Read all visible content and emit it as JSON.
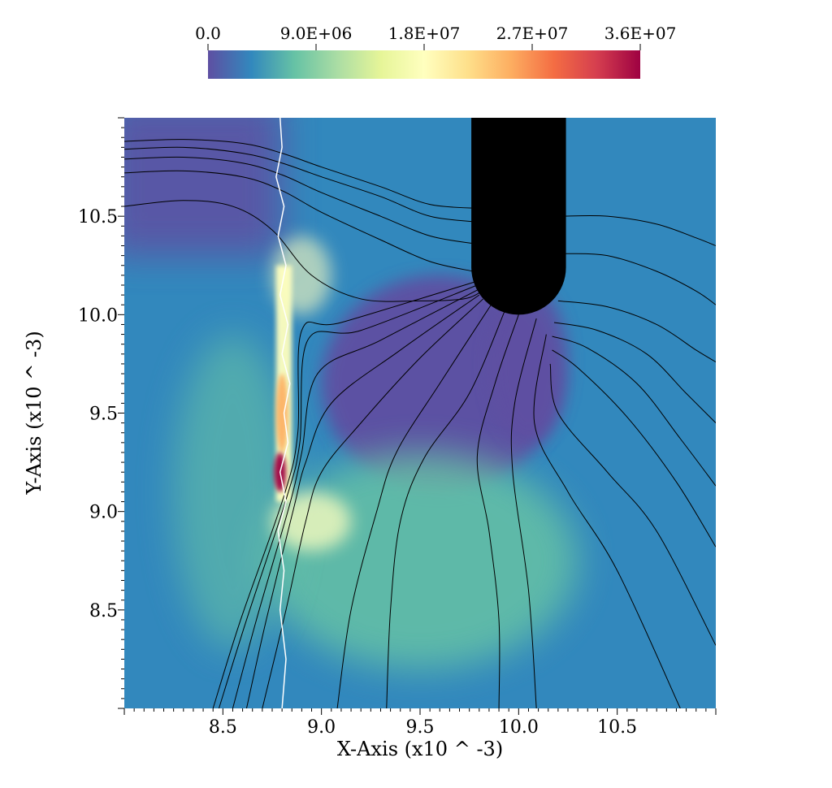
{
  "chart_data": {
    "type": "heatmap",
    "title": "",
    "xlabel": "X-Axis (x10 ^ -3)",
    "ylabel": "Y-Axis (x10 ^ -3)",
    "xlim": [
      8.0,
      11.0
    ],
    "ylim": [
      8.0,
      11.0
    ],
    "x_ticks": [
      8.5,
      9.0,
      9.5,
      10.0,
      10.5
    ],
    "x_tick_labels": [
      "8.5",
      "9.0",
      "9.5",
      "10.0",
      "10.5"
    ],
    "y_ticks": [
      8.5,
      9.0,
      9.5,
      10.0,
      10.5
    ],
    "y_tick_labels": [
      "8.5",
      "9.0",
      "9.5",
      "10.0",
      "10.5"
    ],
    "colorbar": {
      "range": [
        0.0,
        36000000.0
      ],
      "ticks": [
        0.0,
        9000000.0,
        18000000.0,
        27000000.0,
        36000000.0
      ],
      "tick_labels": [
        "0.0",
        "9.0E+06",
        "1.8E+07",
        "2.7E+07",
        "3.6E+07"
      ],
      "colormap": "Spectral (reversed)",
      "stops": [
        "#5e4fa2",
        "#3288bd",
        "#66c2a5",
        "#abdda4",
        "#e6f598",
        "#ffffbf",
        "#fee08b",
        "#fdae61",
        "#f46d43",
        "#d53e4f",
        "#9e0142"
      ],
      "placement": "top"
    },
    "field": {
      "background_color": "#3288bd",
      "low_region_color": "#5e4fa2",
      "medium_region_color": "#66c2a5",
      "high_band_color": "#ffffbf",
      "peak_color": "#9e0142"
    },
    "interface_line": {
      "color": "#ffffff",
      "x": [
        8.79,
        8.8,
        8.77,
        8.81,
        8.78,
        8.82,
        8.79,
        8.83,
        8.8,
        8.84,
        8.81,
        8.83,
        8.79,
        8.82,
        8.78,
        8.81,
        8.79,
        8.82,
        8.8
      ],
      "y": [
        11.0,
        10.85,
        10.7,
        10.55,
        10.4,
        10.25,
        10.1,
        9.95,
        9.8,
        9.65,
        9.5,
        9.35,
        9.2,
        9.05,
        8.9,
        8.7,
        8.5,
        8.25,
        8.0
      ]
    },
    "obstacle": {
      "color": "#000000",
      "x_range": [
        9.76,
        10.24
      ],
      "tip_y": 10.0,
      "top_y": 11.0
    },
    "streamlines": {
      "color": "#000000",
      "lines": [
        {
          "x": [
            8.0,
            8.3,
            8.6,
            8.8,
            9.0,
            9.3,
            9.55,
            9.8
          ],
          "y": [
            10.88,
            10.89,
            10.87,
            10.82,
            10.75,
            10.65,
            10.56,
            10.54
          ]
        },
        {
          "x": [
            8.0,
            8.3,
            8.6,
            8.8,
            9.0,
            9.3,
            9.55,
            9.8
          ],
          "y": [
            10.84,
            10.85,
            10.82,
            10.77,
            10.7,
            10.6,
            10.5,
            10.47
          ]
        },
        {
          "x": [
            8.0,
            8.3,
            8.6,
            8.8,
            9.0,
            9.3,
            9.55,
            9.78
          ],
          "y": [
            10.79,
            10.8,
            10.77,
            10.71,
            10.62,
            10.5,
            10.4,
            10.36
          ]
        },
        {
          "x": [
            8.0,
            8.3,
            8.6,
            8.8,
            9.0,
            9.3,
            9.55,
            9.77
          ],
          "y": [
            10.72,
            10.73,
            10.7,
            10.63,
            10.52,
            10.38,
            10.27,
            10.22
          ]
        },
        {
          "x": [
            8.0,
            8.3,
            8.55,
            8.75,
            8.95,
            9.2,
            9.5,
            9.72,
            9.8
          ],
          "y": [
            10.55,
            10.58,
            10.55,
            10.43,
            10.2,
            10.08,
            10.07,
            10.08,
            10.11
          ]
        },
        {
          "x": [
            10.22,
            10.45,
            10.7,
            10.9,
            11.0
          ],
          "y": [
            10.5,
            10.5,
            10.46,
            10.39,
            10.35
          ]
        },
        {
          "x": [
            10.23,
            10.45,
            10.7,
            10.9,
            11.0
          ],
          "y": [
            10.31,
            10.3,
            10.22,
            10.12,
            10.05
          ]
        },
        {
          "x": [
            10.2,
            10.45,
            10.7,
            10.9,
            11.0
          ],
          "y": [
            10.07,
            10.04,
            9.95,
            9.82,
            9.76
          ]
        },
        {
          "x": [
            10.18,
            10.4,
            10.65,
            10.85,
            11.0
          ],
          "y": [
            9.96,
            9.92,
            9.8,
            9.6,
            9.45
          ]
        },
        {
          "x": [
            10.17,
            10.35,
            10.6,
            10.82,
            11.0
          ],
          "y": [
            9.89,
            9.83,
            9.65,
            9.37,
            9.13
          ]
        },
        {
          "x": [
            10.17,
            10.3,
            10.55,
            10.8,
            11.0
          ],
          "y": [
            9.82,
            9.73,
            9.48,
            9.15,
            8.82
          ]
        },
        {
          "x": [
            10.16,
            10.2,
            10.45,
            10.7,
            11.0
          ],
          "y": [
            9.75,
            9.5,
            9.2,
            8.9,
            8.32
          ]
        },
        {
          "x": [
            10.14,
            10.08,
            10.25,
            10.5,
            10.82
          ],
          "y": [
            9.9,
            9.45,
            9.1,
            8.7,
            8.0
          ]
        },
        {
          "x": [
            10.09,
            9.98,
            9.97,
            10.05,
            10.09
          ],
          "y": [
            9.98,
            9.55,
            9.2,
            8.6,
            8.0
          ]
        },
        {
          "x": [
            10.0,
            9.88,
            9.79,
            9.85,
            9.9,
            9.9
          ],
          "y": [
            10.0,
            9.65,
            9.28,
            8.9,
            8.45,
            8.0
          ]
        },
        {
          "x": [
            9.93,
            9.75,
            9.52,
            9.4,
            9.35,
            9.33
          ],
          "y": [
            10.02,
            9.6,
            9.27,
            8.95,
            8.5,
            8.0
          ]
        },
        {
          "x": [
            9.86,
            9.6,
            9.38,
            9.28,
            9.15,
            9.08
          ],
          "y": [
            10.05,
            9.65,
            9.3,
            9.0,
            8.5,
            8.0
          ]
        },
        {
          "x": [
            9.82,
            9.5,
            9.2,
            9.0,
            8.92,
            8.82,
            8.7
          ],
          "y": [
            10.08,
            9.78,
            9.45,
            9.2,
            8.95,
            8.5,
            8.0
          ]
        },
        {
          "x": [
            9.8,
            9.4,
            9.05,
            8.92,
            8.86,
            8.72,
            8.62
          ],
          "y": [
            10.1,
            9.82,
            9.55,
            9.25,
            9.02,
            8.45,
            8.0
          ]
        },
        {
          "x": [
            9.8,
            9.3,
            8.98,
            8.9,
            8.84,
            8.67,
            8.55
          ],
          "y": [
            10.13,
            9.87,
            9.7,
            9.3,
            9.04,
            8.45,
            8.0
          ]
        },
        {
          "x": [
            9.79,
            9.2,
            8.93,
            8.89,
            8.82,
            8.62,
            8.48
          ],
          "y": [
            10.15,
            9.92,
            9.87,
            9.35,
            9.06,
            8.45,
            8.0
          ]
        },
        {
          "x": [
            9.79,
            9.1,
            8.9,
            8.88,
            8.81,
            8.59,
            8.45
          ],
          "y": [
            10.17,
            9.96,
            9.92,
            9.4,
            9.08,
            8.45,
            8.0
          ]
        }
      ]
    }
  }
}
